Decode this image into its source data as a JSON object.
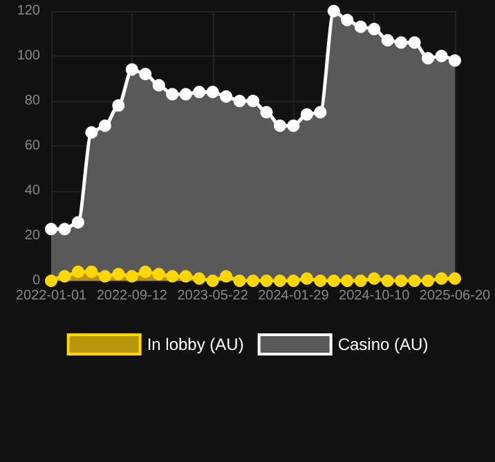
{
  "chart_data": {
    "type": "area",
    "categories": [
      "2022-01-01",
      null,
      null,
      null,
      null,
      null,
      "2022-09-12",
      null,
      null,
      null,
      null,
      null,
      "2023-05-22",
      null,
      null,
      null,
      null,
      null,
      "2024-01-29",
      null,
      null,
      null,
      null,
      null,
      "2024-10-10",
      null,
      null,
      null,
      null,
      null,
      "2025-06-20"
    ],
    "series": [
      {
        "name": "In lobby (AU)",
        "color": "#ffd700",
        "values": [
          0,
          2,
          4,
          4,
          2,
          3,
          2,
          4,
          3,
          2,
          2,
          1,
          0,
          2,
          0,
          0,
          0,
          0,
          0,
          1,
          0,
          0,
          0,
          0,
          1,
          0,
          0,
          0,
          0,
          1,
          1
        ]
      },
      {
        "name": "Casino (AU)",
        "color": "#ffffff",
        "values": [
          23,
          23,
          26,
          66,
          69,
          78,
          94,
          92,
          87,
          83,
          83,
          84,
          84,
          82,
          80,
          80,
          75,
          69,
          69,
          74,
          75,
          120,
          116,
          113,
          112,
          107,
          106,
          106,
          99,
          100,
          98
        ]
      }
    ],
    "ylim": [
      0,
      120
    ],
    "yticks": [
      0,
      20,
      40,
      60,
      80,
      100,
      120
    ],
    "grid": true,
    "legend": "bottom",
    "marker": "circle"
  }
}
